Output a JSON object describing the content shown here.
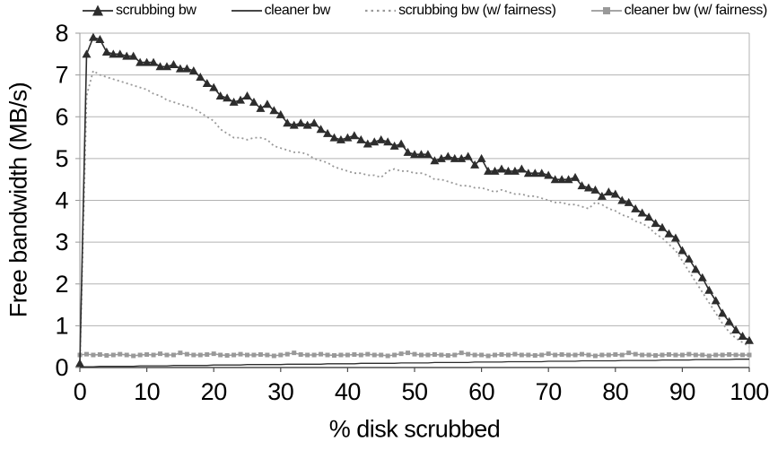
{
  "chart_data": {
    "type": "line",
    "title": "",
    "xlabel": "% disk scrubbed",
    "ylabel": "Free bandwidth (MB/s)",
    "xlim": [
      0,
      100
    ],
    "ylim": [
      0,
      8
    ],
    "x_ticks": [
      0,
      10,
      20,
      30,
      40,
      50,
      60,
      70,
      80,
      90,
      100
    ],
    "y_ticks": [
      0,
      1,
      2,
      3,
      4,
      5,
      6,
      7,
      8
    ],
    "grid": "horizontal gridlines at each y unit, plus right border line",
    "legend_position": "top",
    "colors": {
      "dark_series": "#2d2d2d",
      "gray_series": "#999999",
      "gridline": "#b3b3b3",
      "y_axis": "#999999",
      "x_axis": "#4d4d4d"
    },
    "x": [
      0,
      1,
      2,
      3,
      4,
      5,
      6,
      7,
      8,
      9,
      10,
      11,
      12,
      13,
      14,
      15,
      16,
      17,
      18,
      19,
      20,
      21,
      22,
      23,
      24,
      25,
      26,
      27,
      28,
      29,
      30,
      31,
      32,
      33,
      34,
      35,
      36,
      37,
      38,
      39,
      40,
      41,
      42,
      43,
      44,
      45,
      46,
      47,
      48,
      49,
      50,
      51,
      52,
      53,
      54,
      55,
      56,
      57,
      58,
      59,
      60,
      61,
      62,
      63,
      64,
      65,
      66,
      67,
      68,
      69,
      70,
      71,
      72,
      73,
      74,
      75,
      76,
      77,
      78,
      79,
      80,
      81,
      82,
      83,
      84,
      85,
      86,
      87,
      88,
      89,
      90,
      91,
      92,
      93,
      94,
      95,
      96,
      97,
      98,
      99,
      100
    ],
    "series": [
      {
        "name": "scrubbing bw",
        "color": "#2d2d2d",
        "marker": "triangle",
        "line_style": "solid",
        "line_width": 1.6,
        "values": [
          0.1,
          7.5,
          7.9,
          7.85,
          7.55,
          7.5,
          7.5,
          7.45,
          7.45,
          7.3,
          7.3,
          7.3,
          7.2,
          7.2,
          7.25,
          7.15,
          7.15,
          7.1,
          6.95,
          6.8,
          6.7,
          6.5,
          6.45,
          6.35,
          6.4,
          6.5,
          6.35,
          6.2,
          6.3,
          6.15,
          6.05,
          5.85,
          5.8,
          5.85,
          5.8,
          5.85,
          5.7,
          5.6,
          5.5,
          5.45,
          5.5,
          5.55,
          5.45,
          5.35,
          5.4,
          5.45,
          5.4,
          5.3,
          5.35,
          5.15,
          5.1,
          5.1,
          5.1,
          4.95,
          5.0,
          5.05,
          5.0,
          5.0,
          5.05,
          4.85,
          5.0,
          4.7,
          4.7,
          4.75,
          4.7,
          4.7,
          4.75,
          4.65,
          4.65,
          4.65,
          4.6,
          4.5,
          4.5,
          4.5,
          4.55,
          4.35,
          4.3,
          4.25,
          4.1,
          4.2,
          4.15,
          4.0,
          3.95,
          3.8,
          3.7,
          3.6,
          3.45,
          3.35,
          3.2,
          3.1,
          2.8,
          2.6,
          2.35,
          2.15,
          1.85,
          1.6,
          1.3,
          1.1,
          0.9,
          0.75,
          0.65
        ]
      },
      {
        "name": "cleaner bw",
        "color": "#2d2d2d",
        "marker": "none",
        "line_style": "solid",
        "line_width": 1.3,
        "values": [
          0.02,
          0.02,
          0.02,
          0.03,
          0.03,
          0.03,
          0.03,
          0.03,
          0.03,
          0.04,
          0.04,
          0.04,
          0.04,
          0.04,
          0.05,
          0.05,
          0.05,
          0.05,
          0.05,
          0.05,
          0.06,
          0.06,
          0.06,
          0.06,
          0.06,
          0.07,
          0.07,
          0.07,
          0.07,
          0.07,
          0.07,
          0.08,
          0.08,
          0.08,
          0.08,
          0.08,
          0.08,
          0.09,
          0.09,
          0.09,
          0.09,
          0.09,
          0.1,
          0.1,
          0.1,
          0.1,
          0.1,
          0.1,
          0.11,
          0.11,
          0.11,
          0.11,
          0.11,
          0.12,
          0.12,
          0.12,
          0.12,
          0.12,
          0.12,
          0.13,
          0.13,
          0.13,
          0.13,
          0.13,
          0.14,
          0.14,
          0.14,
          0.14,
          0.14,
          0.14,
          0.15,
          0.15,
          0.15,
          0.15,
          0.15,
          0.16,
          0.16,
          0.16,
          0.16,
          0.16,
          0.16,
          0.17,
          0.17,
          0.17,
          0.17,
          0.17,
          0.17,
          0.18,
          0.18,
          0.18,
          0.18,
          0.18,
          0.19,
          0.19,
          0.19,
          0.19,
          0.19,
          0.19,
          0.2,
          0.2,
          0.2
        ]
      },
      {
        "name": "scrubbing bw (w/ fairness)",
        "color": "#999999",
        "marker": "none",
        "line_style": "dotted",
        "line_width": 1.8,
        "values": [
          0.05,
          6.5,
          7.1,
          7.0,
          6.95,
          6.9,
          6.85,
          6.8,
          6.75,
          6.7,
          6.65,
          6.55,
          6.5,
          6.4,
          6.35,
          6.3,
          6.25,
          6.2,
          6.1,
          6.0,
          5.9,
          5.7,
          5.6,
          5.5,
          5.5,
          5.45,
          5.5,
          5.5,
          5.45,
          5.3,
          5.25,
          5.2,
          5.15,
          5.15,
          5.1,
          5.0,
          4.95,
          4.9,
          4.8,
          4.75,
          4.7,
          4.65,
          4.65,
          4.6,
          4.6,
          4.55,
          4.7,
          4.75,
          4.7,
          4.7,
          4.65,
          4.65,
          4.6,
          4.5,
          4.5,
          4.45,
          4.4,
          4.35,
          4.35,
          4.3,
          4.3,
          4.25,
          4.2,
          4.25,
          4.2,
          4.15,
          4.15,
          4.1,
          4.1,
          4.05,
          4.0,
          3.95,
          3.95,
          3.9,
          3.9,
          3.85,
          3.8,
          3.95,
          3.9,
          3.8,
          3.75,
          3.65,
          3.6,
          3.5,
          3.45,
          3.35,
          3.2,
          3.1,
          2.95,
          2.8,
          2.55,
          2.3,
          2.05,
          1.8,
          1.55,
          1.3,
          1.05,
          0.85,
          0.7,
          0.6,
          0.5
        ]
      },
      {
        "name": "cleaner bw (w/ fairness)",
        "color": "#999999",
        "marker": "square",
        "line_style": "solid",
        "line_width": 1.4,
        "values": [
          0.3,
          0.32,
          0.3,
          0.31,
          0.29,
          0.3,
          0.32,
          0.3,
          0.28,
          0.3,
          0.31,
          0.3,
          0.33,
          0.3,
          0.3,
          0.35,
          0.32,
          0.3,
          0.3,
          0.31,
          0.33,
          0.3,
          0.29,
          0.3,
          0.32,
          0.3,
          0.3,
          0.31,
          0.3,
          0.28,
          0.3,
          0.32,
          0.35,
          0.31,
          0.3,
          0.3,
          0.32,
          0.3,
          0.29,
          0.3,
          0.3,
          0.31,
          0.3,
          0.32,
          0.3,
          0.3,
          0.28,
          0.3,
          0.33,
          0.35,
          0.32,
          0.3,
          0.3,
          0.31,
          0.3,
          0.29,
          0.3,
          0.35,
          0.32,
          0.3,
          0.3,
          0.28,
          0.3,
          0.31,
          0.3,
          0.32,
          0.3,
          0.3,
          0.29,
          0.3,
          0.33,
          0.3,
          0.31,
          0.3,
          0.3,
          0.32,
          0.3,
          0.28,
          0.3,
          0.3,
          0.31,
          0.3,
          0.35,
          0.32,
          0.3,
          0.3,
          0.29,
          0.3,
          0.31,
          0.3,
          0.3,
          0.32,
          0.3,
          0.3,
          0.28,
          0.3,
          0.3,
          0.31,
          0.3,
          0.3,
          0.3
        ]
      }
    ]
  }
}
